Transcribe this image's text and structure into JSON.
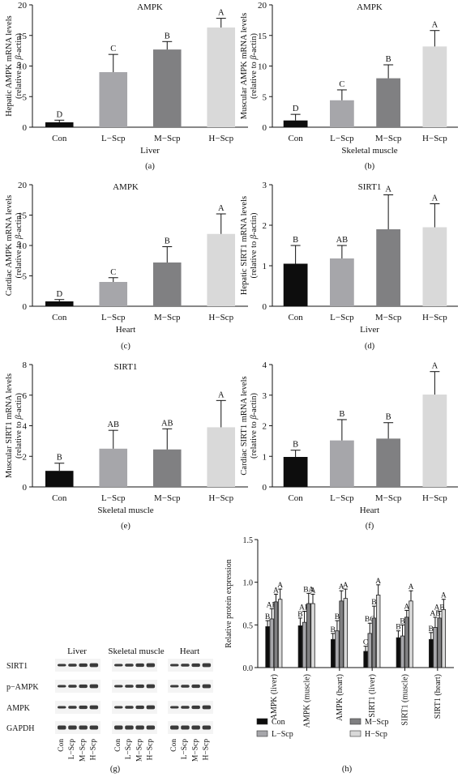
{
  "charts": [
    {
      "id": "a",
      "type": "bar",
      "title": "AMPK",
      "panel_label": "(a)",
      "xlabel": "Liver",
      "ylabel_line1": "Hepatic AMPK mRNA levels",
      "ylabel_prefix": "(relative to ",
      "ylabel_beta": "β",
      "ylabel_suffix": "-actin)",
      "ylim": [
        0,
        20
      ],
      "yticks": [
        "0",
        "5",
        "10",
        "15",
        "20"
      ],
      "categories": [
        "Con",
        "L−Scp",
        "M−Scp",
        "H−Scp"
      ],
      "values": [
        0.8,
        9.0,
        12.7,
        16.3
      ],
      "errors": [
        0.35,
        2.9,
        1.3,
        1.5
      ],
      "letters": [
        "D",
        "C",
        "B",
        "A"
      ]
    },
    {
      "id": "b",
      "type": "bar",
      "title": "AMPK",
      "panel_label": "(b)",
      "xlabel": "Skeletal muscle",
      "ylabel_line1": "Muscular AMPK mRNA levels",
      "ylabel_prefix": "(relative to ",
      "ylabel_beta": "β",
      "ylabel_suffix": "-actin)",
      "ylim": [
        0,
        20
      ],
      "yticks": [
        "0",
        "5",
        "10",
        "15",
        "20"
      ],
      "categories": [
        "Con",
        "L−Scp",
        "M−Scp",
        "H−Scp"
      ],
      "values": [
        1.1,
        4.4,
        8.0,
        13.2
      ],
      "errors": [
        1.0,
        1.7,
        2.2,
        2.6
      ],
      "letters": [
        "D",
        "C",
        "B",
        "A"
      ]
    },
    {
      "id": "c",
      "type": "bar",
      "title": "AMPK",
      "panel_label": "(c)",
      "xlabel": "Heart",
      "ylabel_line1": "Cardiac AMPK mRNA levels",
      "ylabel_prefix": "(relative to ",
      "ylabel_beta": "β",
      "ylabel_suffix": "-actin)",
      "ylim": [
        0,
        20
      ],
      "yticks": [
        "0",
        "5",
        "10",
        "15",
        "20"
      ],
      "categories": [
        "Con",
        "L−Scp",
        "M−Scp",
        "H−Scp"
      ],
      "values": [
        0.8,
        4.0,
        7.2,
        11.9
      ],
      "errors": [
        0.3,
        0.7,
        2.6,
        3.3
      ],
      "letters": [
        "D",
        "C",
        "B",
        "A"
      ]
    },
    {
      "id": "d",
      "type": "bar",
      "title": "SIRT1",
      "panel_label": "(d)",
      "xlabel": "Liver",
      "ylabel_line1": "Hepatic SIRT1 mRNA levels",
      "ylabel_prefix": "(relative to ",
      "ylabel_beta": "β",
      "ylabel_suffix": "-actin)",
      "ylim": [
        0,
        3
      ],
      "yticks": [
        "0",
        "1",
        "2",
        "3"
      ],
      "categories": [
        "Con",
        "L−Scp",
        "M−Scp",
        "H−Scp"
      ],
      "values": [
        1.05,
        1.18,
        1.9,
        1.95
      ],
      "errors": [
        0.45,
        0.32,
        0.85,
        0.58
      ],
      "letters": [
        "B",
        "AB",
        "A",
        "A"
      ]
    },
    {
      "id": "e",
      "type": "bar",
      "title": "SIRT1",
      "panel_label": "(e)",
      "xlabel": "Skeletal muscle",
      "ylabel_line1": "Muscular SIRT1 mRNA levels",
      "ylabel_prefix": "(relative to ",
      "ylabel_beta": "β",
      "ylabel_suffix": "-actin)",
      "ylim": [
        0,
        8
      ],
      "yticks": [
        "0",
        "2",
        "4",
        "6",
        "8"
      ],
      "categories": [
        "Con",
        "L−Scp",
        "M−Scp",
        "H−Scp"
      ],
      "values": [
        1.05,
        2.5,
        2.45,
        3.9
      ],
      "errors": [
        0.5,
        1.2,
        1.35,
        1.75
      ],
      "letters": [
        "B",
        "AB",
        "AB",
        "A"
      ]
    },
    {
      "id": "f",
      "type": "bar",
      "title": "",
      "panel_label": "(f)",
      "xlabel": "Heart",
      "ylabel_line1": "Cardiac SIRT1 mRNA levels",
      "ylabel_prefix": "(relative to ",
      "ylabel_beta": "β",
      "ylabel_suffix": "-actin)",
      "ylim": [
        0,
        4
      ],
      "yticks": [
        "0",
        "1",
        "2",
        "3",
        "4"
      ],
      "categories": [
        "Con",
        "L−Scp",
        "M−Scp",
        "H−Scp"
      ],
      "values": [
        0.98,
        1.52,
        1.58,
        3.02
      ],
      "errors": [
        0.22,
        0.68,
        0.52,
        0.75
      ],
      "letters": [
        "B",
        "B",
        "B",
        "A"
      ]
    },
    {
      "id": "h",
      "type": "bar",
      "title": "",
      "panel_label": "(h)",
      "ylabel": "Relative protein expression",
      "ylim": [
        0,
        1.5
      ],
      "yticks": [
        "0.0",
        "0.5",
        "1.0",
        "1.5"
      ],
      "categories": [
        "AMPK (liver)",
        "AMPK (muscle)",
        "AMPK (heart)",
        "SIRT1 (liver)",
        "SIRT1 (muscle)",
        "SIRT1 (heart)"
      ],
      "series": [
        {
          "name": "Con",
          "values": [
            0.48,
            0.49,
            0.33,
            0.19,
            0.35,
            0.33
          ],
          "errors": [
            0.07,
            0.09,
            0.07,
            0.06,
            0.08,
            0.08
          ]
        },
        {
          "name": "L−Scp",
          "values": [
            0.57,
            0.53,
            0.43,
            0.4,
            0.37,
            0.47
          ],
          "errors": [
            0.12,
            0.13,
            0.12,
            0.12,
            0.13,
            0.12
          ]
        },
        {
          "name": "M−Scp",
          "values": [
            0.77,
            0.75,
            0.78,
            0.58,
            0.59,
            0.58
          ],
          "errors": [
            0.09,
            0.12,
            0.12,
            0.14,
            0.08,
            0.08
          ]
        },
        {
          "name": "H−Scp",
          "values": [
            0.8,
            0.75,
            0.81,
            0.85,
            0.78,
            0.68
          ],
          "errors": [
            0.12,
            0.11,
            0.11,
            0.12,
            0.12,
            0.12
          ]
        }
      ],
      "letters": [
        [
          "B",
          "AB",
          "A",
          "A"
        ],
        [
          "B",
          "AB",
          "BA",
          "A"
        ],
        [
          "B",
          "B",
          "A",
          "A"
        ],
        [
          "C",
          "BC",
          "B",
          "A"
        ],
        [
          "B",
          "B",
          "A",
          "A"
        ],
        [
          "B",
          "AB",
          "AB",
          "A"
        ]
      ],
      "legend": [
        "Con",
        "L−Scp",
        "M−Scp",
        "H−Scp"
      ]
    }
  ],
  "colors": [
    "#0d0d0d",
    "#a6a6aa",
    "#808082",
    "#d9d9d9"
  ],
  "blot": {
    "panel_label": "(g)",
    "tissues": [
      "Liver",
      "Skeletal muscle",
      "Heart"
    ],
    "proteins": [
      "SIRT1",
      "p−AMPK",
      "AMPK",
      "GAPDH"
    ],
    "lane_labels": [
      "Con",
      "L−Scp",
      "M−Scp",
      "H−Scp"
    ]
  }
}
